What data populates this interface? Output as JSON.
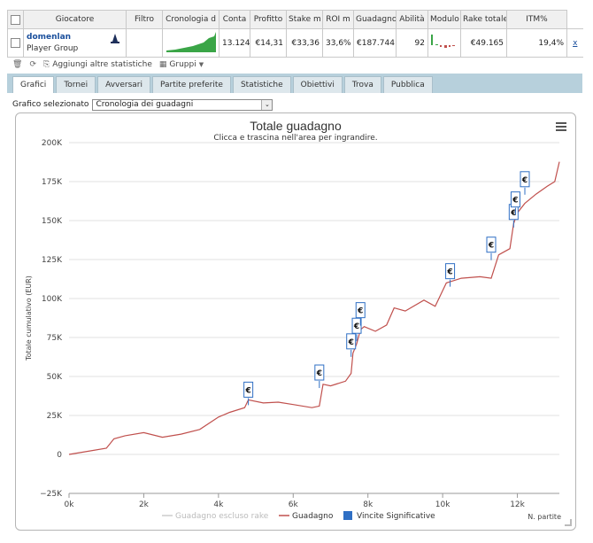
{
  "table": {
    "headers": [
      "Giocatore",
      "Filtro",
      "Cronologia d",
      "Conta",
      "Profitto",
      "Stake m",
      "ROI m",
      "Guadagno",
      "Abilità",
      "Modulo",
      "Rake totale",
      "ITM%"
    ],
    "row": {
      "player": "domenlan",
      "group": "Player Group",
      "conta": "13.124",
      "profitto": "€14,31",
      "stake": "€33,36",
      "roi": "33,6%",
      "guadagno": "€187.744",
      "abilita": "92",
      "rake": "€49.165",
      "itm": "19,4%",
      "remove": "x"
    }
  },
  "toolbar": {
    "add_stats": "Aggiungi altre statistiche",
    "groups": "Gruppi"
  },
  "tabs": [
    "Grafici",
    "Tornei",
    "Avversari",
    "Partite preferite",
    "Statistiche",
    "Obiettivi",
    "Trova",
    "Pubblica"
  ],
  "selector": {
    "label": "Grafico selezionato",
    "value": "Cronologia dei guadagni"
  },
  "chart_data": {
    "type": "line",
    "title": "Totale guadagno",
    "subtitle": "Clicca e trascina nell'area per ingrandire.",
    "xlabel": "N. partite",
    "ylabel": "Totale cumulativo (EUR)",
    "xlim": [
      0,
      13124
    ],
    "ylim": [
      -25000,
      200000
    ],
    "x_ticks": [
      0,
      2000,
      4000,
      6000,
      8000,
      10000,
      12000
    ],
    "x_tick_labels": [
      "0k",
      "2k",
      "4k",
      "6k",
      "8k",
      "10k",
      "12k"
    ],
    "y_ticks": [
      -25000,
      0,
      25000,
      50000,
      75000,
      100000,
      125000,
      150000,
      175000,
      200000
    ],
    "y_tick_labels": [
      "−25K",
      "0",
      "25K",
      "50K",
      "75K",
      "100K",
      "125K",
      "150K",
      "175K",
      "200K"
    ],
    "grid": true,
    "legend_position": "bottom",
    "legend": [
      "Guadagno escluso rake",
      "Guadagno",
      "Vincite Significative"
    ],
    "series": [
      {
        "name": "Guadagno",
        "color": "#c0504d",
        "x": [
          0,
          500,
          1000,
          1200,
          1500,
          2000,
          2500,
          3000,
          3500,
          4000,
          4300,
          4700,
          4800,
          5200,
          5600,
          6000,
          6500,
          6700,
          6800,
          7000,
          7400,
          7550,
          7600,
          7700,
          7800,
          7900,
          8200,
          8500,
          8700,
          9000,
          9500,
          9800,
          10100,
          10500,
          11000,
          11300,
          11500,
          11800,
          11900,
          12000,
          12200,
          12500,
          12800,
          13000,
          13124
        ],
        "y": [
          0,
          2000,
          4000,
          10000,
          12000,
          14000,
          11000,
          13000,
          16000,
          24000,
          27000,
          30000,
          35000,
          33000,
          33500,
          32000,
          30000,
          31000,
          45000,
          44000,
          47000,
          52000,
          65000,
          71000,
          80000,
          82000,
          79000,
          83000,
          94000,
          92000,
          99000,
          95000,
          110000,
          113000,
          114000,
          113000,
          128000,
          132000,
          148000,
          155000,
          161000,
          167000,
          172000,
          175000,
          187744
        ]
      }
    ],
    "significant_wins": [
      {
        "x": 4800,
        "y": 35000
      },
      {
        "x": 6700,
        "y": 46000
      },
      {
        "x": 7550,
        "y": 66000
      },
      {
        "x": 7700,
        "y": 76000
      },
      {
        "x": 7800,
        "y": 86000
      },
      {
        "x": 10200,
        "y": 111000
      },
      {
        "x": 11300,
        "y": 128000
      },
      {
        "x": 11900,
        "y": 149000
      },
      {
        "x": 11950,
        "y": 157000
      },
      {
        "x": 12200,
        "y": 170000
      }
    ],
    "win_marker_label": "€"
  },
  "colors": {
    "accent": "#1a4f9c",
    "line": "#c0504d",
    "marker": "#2f6fc4",
    "tabbar": "#b7d0dc"
  }
}
